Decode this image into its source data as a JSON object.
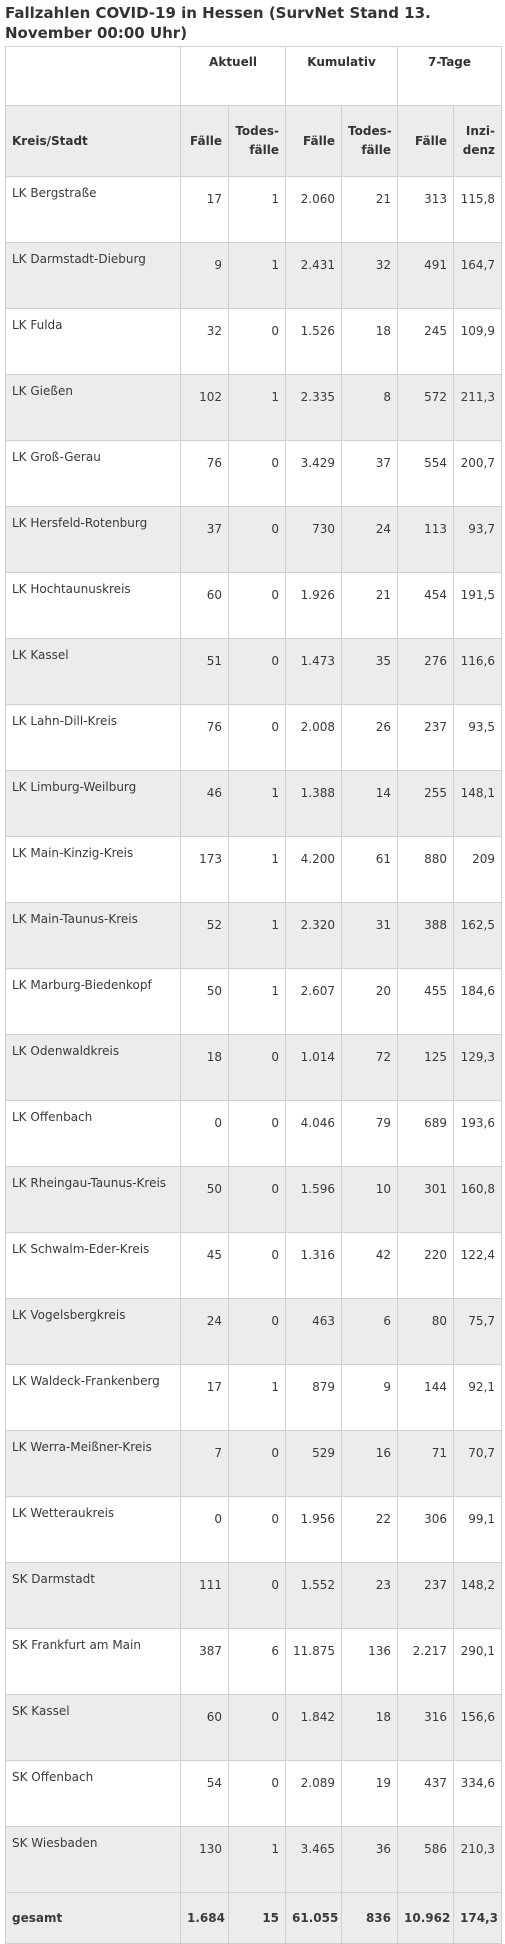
{
  "title": "Fallzahlen COVID-19 in Hessen (SurvNet Stand 13. November 00:00 Uhr)",
  "groups": {
    "aktuell": "Aktuell",
    "kumulativ": "Kumulativ",
    "sieben_tage": "7-Tage"
  },
  "columns": [
    "Kreis/Stadt",
    "Fälle",
    "Todes-\nfälle",
    "Fälle",
    "Todes-\nfälle",
    "Fälle",
    "Inzi-\ndenz"
  ],
  "rows": [
    [
      "LK Bergstraße",
      "17",
      "1",
      "2.060",
      "21",
      "313",
      "115,8"
    ],
    [
      "LK Darmstadt-Dieburg",
      "9",
      "1",
      "2.431",
      "32",
      "491",
      "164,7"
    ],
    [
      "LK Fulda",
      "32",
      "0",
      "1.526",
      "18",
      "245",
      "109,9"
    ],
    [
      "LK Gießen",
      "102",
      "1",
      "2.335",
      "8",
      "572",
      "211,3"
    ],
    [
      "LK Groß-Gerau",
      "76",
      "0",
      "3.429",
      "37",
      "554",
      "200,7"
    ],
    [
      "LK Hersfeld-Rotenburg",
      "37",
      "0",
      "730",
      "24",
      "113",
      "93,7"
    ],
    [
      "LK Hochtaunuskreis",
      "60",
      "0",
      "1.926",
      "21",
      "454",
      "191,5"
    ],
    [
      "LK Kassel",
      "51",
      "0",
      "1.473",
      "35",
      "276",
      "116,6"
    ],
    [
      "LK Lahn-Dill-Kreis",
      "76",
      "0",
      "2.008",
      "26",
      "237",
      "93,5"
    ],
    [
      "LK Limburg-Weilburg",
      "46",
      "1",
      "1.388",
      "14",
      "255",
      "148,1"
    ],
    [
      "LK Main-Kinzig-Kreis",
      "173",
      "1",
      "4.200",
      "61",
      "880",
      "209"
    ],
    [
      "LK Main-Taunus-Kreis",
      "52",
      "1",
      "2.320",
      "31",
      "388",
      "162,5"
    ],
    [
      "LK Marburg-Biedenkopf",
      "50",
      "1",
      "2.607",
      "20",
      "455",
      "184,6"
    ],
    [
      "LK Odenwaldkreis",
      "18",
      "0",
      "1.014",
      "72",
      "125",
      "129,3"
    ],
    [
      "LK Offenbach",
      "0",
      "0",
      "4.046",
      "79",
      "689",
      "193,6"
    ],
    [
      "LK Rheingau-Taunus-Kreis",
      "50",
      "0",
      "1.596",
      "10",
      "301",
      "160,8"
    ],
    [
      "LK Schwalm-Eder-Kreis",
      "45",
      "0",
      "1.316",
      "42",
      "220",
      "122,4"
    ],
    [
      "LK Vogelsbergkreis",
      "24",
      "0",
      "463",
      "6",
      "80",
      "75,7"
    ],
    [
      "LK Waldeck-Frankenberg",
      "17",
      "1",
      "879",
      "9",
      "144",
      "92,1"
    ],
    [
      "LK Werra-Meißner-Kreis",
      "7",
      "0",
      "529",
      "16",
      "71",
      "70,7"
    ],
    [
      "LK Wetteraukreis",
      "0",
      "0",
      "1.956",
      "22",
      "306",
      "99,1"
    ],
    [
      "SK Darmstadt",
      "111",
      "0",
      "1.552",
      "23",
      "237",
      "148,2"
    ],
    [
      "SK Frankfurt am Main",
      "387",
      "6",
      "11.875",
      "136",
      "2.217",
      "290,1"
    ],
    [
      "SK Kassel",
      "60",
      "0",
      "1.842",
      "18",
      "316",
      "156,6"
    ],
    [
      "SK Offenbach",
      "54",
      "0",
      "2.089",
      "19",
      "437",
      "334,6"
    ],
    [
      "SK Wiesbaden",
      "130",
      "1",
      "3.465",
      "36",
      "586",
      "210,3"
    ]
  ],
  "total": [
    "gesamt",
    "1.684",
    "15",
    "61.055",
    "836",
    "10.962",
    "174,3"
  ]
}
